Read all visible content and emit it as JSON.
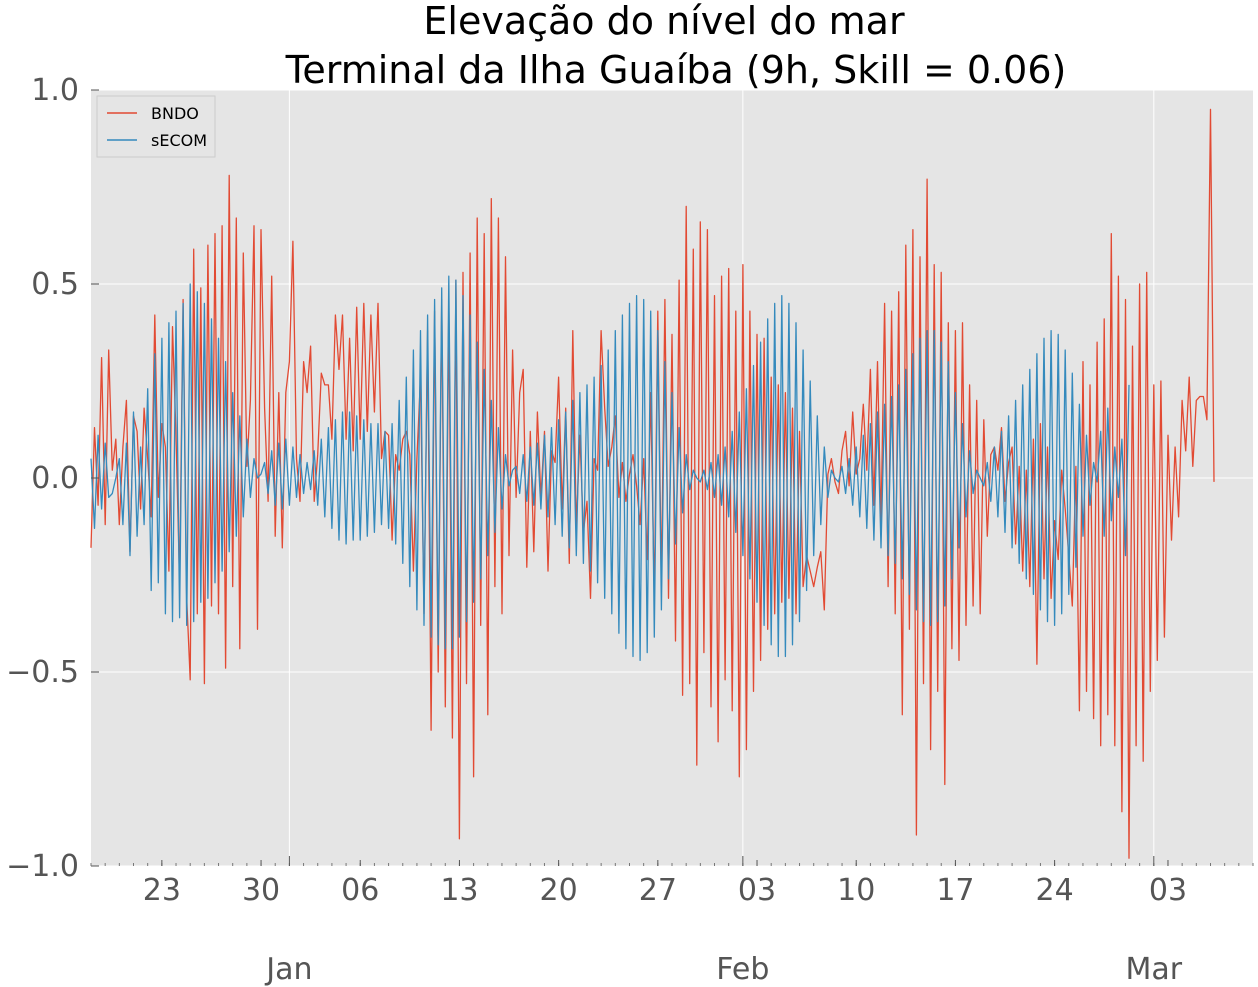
{
  "chart_data": {
    "type": "line",
    "title_line1": "Elevação do nível do mar",
    "title_line2": "Terminal da Ilha Guaíba (9h, Skill = 0.06)",
    "xlabel": "",
    "ylabel": "",
    "xlim": [
      "2015-12-16",
      "2016-03-07"
    ],
    "ylim": [
      -1.0,
      1.0
    ],
    "grid": true,
    "legend_position": "top-left",
    "yticks": [
      {
        "value": 1.0,
        "label": "1.0"
      },
      {
        "value": 0.5,
        "label": "0.5"
      },
      {
        "value": 0.0,
        "label": "0.0"
      },
      {
        "value": -0.5,
        "label": "−0.5"
      },
      {
        "value": -1.0,
        "label": "−1.0"
      }
    ],
    "xticks_minor": [
      {
        "date": "2015-12-21",
        "label": "23"
      },
      {
        "date": "2015-12-28",
        "label": "30"
      },
      {
        "date": "2016-01-04",
        "label": "06"
      },
      {
        "date": "2016-01-11",
        "label": "13"
      },
      {
        "date": "2016-01-18",
        "label": "20"
      },
      {
        "date": "2016-01-25",
        "label": "27"
      },
      {
        "date": "2016-02-01",
        "label": "03"
      },
      {
        "date": "2016-02-08",
        "label": "10"
      },
      {
        "date": "2016-02-15",
        "label": "17"
      },
      {
        "date": "2016-02-22",
        "label": "24"
      },
      {
        "date": "2016-03-01",
        "label": "03"
      }
    ],
    "xticks_major": [
      {
        "date": "2015-12-30",
        "label": "Jan"
      },
      {
        "date": "2016-01-31",
        "label": "Feb"
      },
      {
        "date": "2016-02-29",
        "label": "Mar"
      }
    ],
    "series": [
      {
        "name": "BNDO",
        "color": "#e24a33",
        "x_start": "2015-12-16",
        "interval_hours": 6,
        "values": [
          -0.18,
          0.13,
          -0.07,
          0.31,
          -0.12,
          0.33,
          0.02,
          0.1,
          -0.12,
          0.08,
          0.2,
          -0.19,
          0.16,
          0.12,
          -0.08,
          0.18,
          0.05,
          -0.1,
          0.42,
          -0.05,
          0.14,
          0.08,
          -0.24,
          0.39,
          0.11,
          -0.27,
          0.46,
          -0.31,
          -0.52,
          0.59,
          -0.35,
          0.49,
          -0.53,
          0.6,
          -0.33,
          0.63,
          -0.35,
          0.65,
          -0.49,
          0.78,
          -0.28,
          0.67,
          -0.44,
          0.58,
          0.03,
          0.2,
          0.65,
          -0.39,
          0.64,
          0.18,
          -0.06,
          0.52,
          -0.15,
          0.22,
          -0.18,
          0.22,
          0.3,
          0.61,
          0.05,
          -0.06,
          0.3,
          0.22,
          0.34,
          -0.06,
          0.06,
          0.27,
          0.24,
          0.24,
          0.1,
          0.42,
          0.28,
          0.42,
          0.1,
          0.36,
          0.07,
          0.44,
          0.1,
          0.45,
          0.12,
          0.42,
          0.17,
          0.45,
          0.05,
          0.12,
          0.11,
          -0.16,
          0.06,
          0.02,
          0.1,
          0.12,
          0.06,
          -0.24,
          0.05,
          0.26,
          -0.35,
          0.38,
          -0.65,
          0.43,
          -0.5,
          0.46,
          -0.59,
          0.45,
          -0.67,
          0.51,
          -0.93,
          0.53,
          -0.53,
          0.58,
          -0.77,
          0.67,
          -0.38,
          0.63,
          -0.61,
          0.72,
          -0.28,
          0.67,
          -0.35,
          0.57,
          -0.2,
          0.33,
          -0.05,
          0.22,
          0.28,
          -0.23,
          0.12,
          -0.19,
          0.17,
          -0.05,
          0.12,
          -0.24,
          0.07,
          0.04,
          0.26,
          -0.08,
          0.18,
          -0.22,
          0.38,
          -0.13,
          0.11,
          -0.14,
          -0.06,
          -0.31,
          0.05,
          0.02,
          0.38,
          0.18,
          0.03,
          0.08,
          0.16,
          -0.05,
          0.04,
          -0.06,
          0.01,
          0.06,
          -0.02,
          -0.12,
          0.05,
          -0.21,
          0.22,
          -0.31,
          0.43,
          -0.28,
          0.46,
          -0.31,
          0.37,
          -0.42,
          0.51,
          -0.56,
          0.7,
          -0.53,
          0.59,
          -0.74,
          0.66,
          -0.45,
          0.64,
          -0.59,
          0.47,
          -0.68,
          0.52,
          -0.52,
          0.54,
          -0.6,
          0.43,
          -0.77,
          0.55,
          -0.7,
          0.43,
          -0.55,
          0.37,
          -0.47,
          0.36,
          -0.39,
          0.26,
          -0.35,
          0.24,
          -0.32,
          0.22,
          -0.31,
          0.18,
          -0.35,
          0.12,
          -0.28,
          -0.2,
          -0.24,
          -0.28,
          -0.23,
          -0.19,
          -0.34,
          0.01,
          0.05,
          -0.01,
          -0.04,
          0.07,
          0.12,
          -0.02,
          0.17,
          0.01,
          0.05,
          0.19,
          0.02,
          0.28,
          -0.07,
          0.3,
          -0.12,
          0.45,
          -0.28,
          0.43,
          -0.35,
          0.48,
          -0.61,
          0.6,
          -0.39,
          0.64,
          -0.92,
          0.57,
          -0.53,
          0.77,
          -0.7,
          0.55,
          -0.55,
          0.53,
          -0.79,
          0.4,
          -0.44,
          0.38,
          -0.47,
          0.4,
          -0.38,
          0.24,
          -0.33,
          0.2,
          -0.35,
          0.15,
          -0.15,
          0.06,
          0.08,
          0.02,
          0.13,
          -0.06,
          0.04,
          0.08,
          -0.17,
          0.03,
          -0.24,
          0.02,
          -0.28,
          0.1,
          -0.48,
          0.14,
          -0.26,
          0.08,
          -0.31,
          -0.11,
          -0.21,
          0.02,
          -0.08,
          -0.2,
          -0.33,
          0.03,
          -0.6,
          0.3,
          -0.55,
          0.24,
          -0.62,
          0.35,
          -0.69,
          0.41,
          -0.61,
          0.63,
          -0.69,
          0.52,
          -0.86,
          0.46,
          -0.98,
          0.34,
          -0.69,
          0.5,
          -0.73,
          0.53,
          -0.55,
          0.24,
          -0.47,
          0.25,
          -0.41,
          0.11,
          -0.16,
          0.08,
          -0.1,
          0.2,
          0.07,
          0.26,
          0.03,
          0.2,
          0.21,
          0.21,
          0.15,
          0.95,
          -0.01
        ]
      },
      {
        "name": "sECOM",
        "color": "#348abd",
        "x_start": "2015-12-16",
        "interval_hours": 6,
        "values": [
          0.05,
          -0.13,
          0.11,
          -0.08,
          0.09,
          -0.05,
          -0.04,
          0.0,
          0.05,
          -0.12,
          0.09,
          -0.2,
          0.17,
          -0.15,
          0.08,
          -0.12,
          0.23,
          -0.29,
          0.32,
          -0.27,
          0.36,
          -0.35,
          0.4,
          -0.37,
          0.43,
          -0.36,
          0.45,
          -0.38,
          0.5,
          -0.37,
          0.48,
          -0.32,
          0.45,
          -0.31,
          0.41,
          -0.27,
          0.36,
          -0.24,
          0.3,
          -0.19,
          0.22,
          -0.15,
          0.16,
          -0.1,
          0.1,
          -0.05,
          0.05,
          0.0,
          0.01,
          0.04,
          -0.04,
          0.07,
          -0.07,
          0.09,
          -0.08,
          0.1,
          -0.07,
          0.08,
          -0.05,
          0.06,
          -0.04,
          0.04,
          -0.03,
          0.07,
          -0.07,
          0.1,
          -0.1,
          0.13,
          -0.13,
          0.15,
          -0.16,
          0.17,
          -0.17,
          0.17,
          -0.16,
          0.16,
          -0.16,
          0.15,
          -0.15,
          0.14,
          -0.14,
          0.14,
          -0.12,
          0.12,
          -0.13,
          0.14,
          -0.17,
          0.2,
          -0.22,
          0.26,
          -0.28,
          0.33,
          -0.34,
          0.38,
          -0.38,
          0.42,
          -0.41,
          0.46,
          -0.43,
          0.49,
          -0.44,
          0.52,
          -0.44,
          0.51,
          -0.41,
          0.47,
          -0.37,
          0.42,
          -0.32,
          0.35,
          -0.26,
          0.28,
          -0.2,
          0.2,
          -0.14,
          0.13,
          -0.08,
          0.06,
          -0.02,
          0.02,
          0.03,
          -0.04,
          0.06,
          -0.06,
          0.08,
          -0.07,
          0.09,
          -0.08,
          0.11,
          -0.1,
          0.13,
          -0.12,
          0.15,
          -0.15,
          0.17,
          -0.18,
          0.2,
          -0.2,
          0.22,
          -0.22,
          0.24,
          -0.24,
          0.26,
          -0.27,
          0.29,
          -0.31,
          0.33,
          -0.35,
          0.38,
          -0.4,
          0.42,
          -0.44,
          0.45,
          -0.46,
          0.47,
          -0.47,
          0.46,
          -0.45,
          0.43,
          -0.41,
          0.38,
          -0.34,
          0.3,
          -0.26,
          0.22,
          -0.17,
          0.13,
          -0.09,
          0.06,
          -0.03,
          0.02,
          0.0,
          -0.01,
          0.02,
          -0.03,
          0.04,
          -0.05,
          0.06,
          -0.07,
          0.08,
          -0.1,
          0.12,
          -0.14,
          0.17,
          -0.2,
          0.23,
          -0.26,
          0.29,
          -0.32,
          0.35,
          -0.38,
          0.41,
          -0.43,
          0.45,
          -0.46,
          0.47,
          -0.46,
          0.45,
          -0.43,
          0.4,
          -0.37,
          0.33,
          -0.29,
          0.25,
          -0.2,
          0.16,
          -0.12,
          0.08,
          -0.05,
          0.02,
          0.0,
          -0.01,
          0.03,
          -0.04,
          0.05,
          -0.07,
          0.08,
          -0.1,
          0.11,
          -0.13,
          0.14,
          -0.16,
          0.17,
          -0.18,
          0.19,
          -0.2,
          0.21,
          -0.22,
          0.24,
          -0.26,
          0.28,
          -0.3,
          0.32,
          -0.34,
          0.36,
          -0.37,
          0.38,
          -0.38,
          0.38,
          -0.37,
          0.35,
          -0.33,
          0.3,
          -0.26,
          0.22,
          -0.18,
          0.14,
          -0.1,
          0.07,
          -0.04,
          0.02,
          0.0,
          -0.02,
          0.04,
          -0.06,
          0.08,
          -0.1,
          0.12,
          -0.14,
          0.16,
          -0.18,
          0.2,
          -0.22,
          0.24,
          -0.26,
          0.28,
          -0.3,
          0.32,
          -0.34,
          0.36,
          -0.37,
          0.38,
          -0.38,
          0.37,
          -0.35,
          0.33,
          -0.3,
          0.27,
          -0.23,
          0.19,
          -0.15,
          0.11,
          -0.07,
          0.04,
          -0.01,
          0.12,
          -0.15,
          0.18,
          -0.11,
          0.08,
          -0.05,
          0.1,
          -0.2,
          0.24
        ]
      }
    ]
  }
}
